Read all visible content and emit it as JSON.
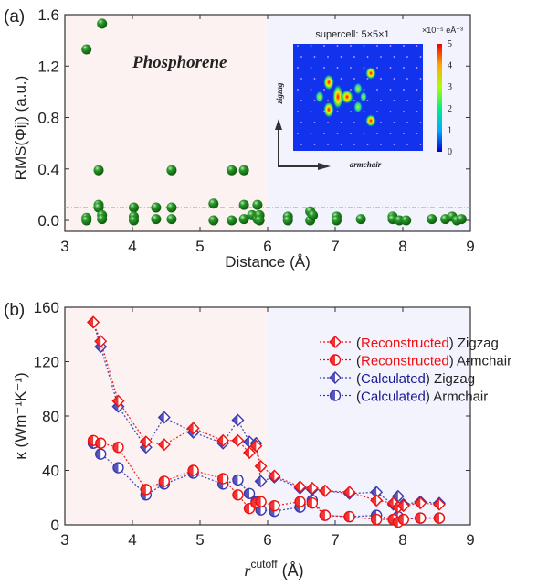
{
  "colors": {
    "pink_bg": "#fdf2f2",
    "blue_bg": "#f2f3fd",
    "scatter": "#1a7a1a",
    "threshold": "#33dddd",
    "red": "#ee1111",
    "blue": "#3333aa"
  },
  "chart_data": [
    {
      "type": "scatter",
      "panel_label": "(a)",
      "title": "",
      "annotation": "Phosphorene",
      "xlabel": "Distance (Å)",
      "ylabel": "RMS(Φij) (a.u.)",
      "xlim": [
        3,
        9
      ],
      "ylim": [
        -0.1,
        1.6
      ],
      "xticks": [
        3,
        4,
        5,
        6,
        7,
        8,
        9
      ],
      "yticks": [
        "0.0",
        "0.4",
        "0.8",
        "1.2",
        "1.6"
      ],
      "threshold": 0.1,
      "shaded_regions": [
        [
          3,
          6
        ],
        [
          6,
          9
        ]
      ],
      "points": [
        [
          3.32,
          1.33
        ],
        [
          3.55,
          1.53
        ],
        [
          3.32,
          0.02
        ],
        [
          3.32,
          0.0
        ],
        [
          3.5,
          0.39
        ],
        [
          3.5,
          0.12
        ],
        [
          3.5,
          0.1
        ],
        [
          3.55,
          0.04
        ],
        [
          3.55,
          0.01
        ],
        [
          4.02,
          0.1
        ],
        [
          4.02,
          0.03
        ],
        [
          4.02,
          0.0
        ],
        [
          4.35,
          0.1
        ],
        [
          4.35,
          0.01
        ],
        [
          4.58,
          0.39
        ],
        [
          4.58,
          0.1
        ],
        [
          4.58,
          0.01
        ],
        [
          5.2,
          0.13
        ],
        [
          5.2,
          0.0
        ],
        [
          5.47,
          0.39
        ],
        [
          5.47,
          0.0
        ],
        [
          5.65,
          0.39
        ],
        [
          5.65,
          0.12
        ],
        [
          5.65,
          0.01
        ],
        [
          5.77,
          0.04
        ],
        [
          5.85,
          0.12
        ],
        [
          5.85,
          0.01
        ],
        [
          5.88,
          0.04
        ],
        [
          5.88,
          0.0
        ],
        [
          6.3,
          0.03
        ],
        [
          6.3,
          0.0
        ],
        [
          6.63,
          0.07
        ],
        [
          6.63,
          0.0
        ],
        [
          6.67,
          0.04
        ],
        [
          7.02,
          0.03
        ],
        [
          7.02,
          0.0
        ],
        [
          7.38,
          0.01
        ],
        [
          7.85,
          0.03
        ],
        [
          7.85,
          0.01
        ],
        [
          7.95,
          0.0
        ],
        [
          8.05,
          0.0
        ],
        [
          8.43,
          0.01
        ],
        [
          8.63,
          0.01
        ],
        [
          8.73,
          0.03
        ],
        [
          8.8,
          0.0
        ],
        [
          8.87,
          0.01
        ]
      ],
      "inset": {
        "title": "supercell: 5×5×1",
        "colorbar_unit": "×10⁻⁵ eÅ⁻³",
        "colorbar_ticks": [
          "0",
          "1",
          "2",
          "3",
          "4",
          "5"
        ],
        "axis_x": "armchair",
        "axis_y": "zigzag"
      }
    },
    {
      "type": "line",
      "panel_label": "(b)",
      "xlabel_main": "r",
      "xlabel_sup": "cutoff",
      "xlabel_unit": "(Å)",
      "ylabel": "κ (Wm⁻¹K⁻¹)",
      "xlim": [
        3,
        9
      ],
      "ylim": [
        0,
        160
      ],
      "xticks": [
        3,
        4,
        5,
        6,
        7,
        8,
        9
      ],
      "yticks": [
        0,
        40,
        80,
        120,
        160
      ],
      "x": [
        3.42,
        3.53,
        3.79,
        4.2,
        4.47,
        4.9,
        5.34,
        5.56,
        5.73,
        5.83,
        5.9,
        6.1,
        6.48,
        6.66,
        6.85,
        7.21,
        7.61,
        7.86,
        7.93,
        8.01,
        8.26,
        8.54
      ],
      "legend_position": "top-right",
      "series": [
        {
          "name": "Reconstructed Zigzag",
          "prefix": "Reconstructed",
          "suffix": "Zigzag",
          "marker": "diamond",
          "color": "#ee1111",
          "values": [
            149,
            135,
            91,
            61,
            59,
            71,
            62,
            62,
            53,
            58,
            43,
            36,
            28,
            27,
            25,
            24,
            18,
            16,
            13,
            14,
            16,
            15
          ]
        },
        {
          "name": "Reconstructed Armchair",
          "prefix": "Reconstructed",
          "suffix": "Armchair",
          "marker": "circle",
          "color": "#ee1111",
          "values": [
            62,
            60,
            57,
            26,
            32,
            40,
            34,
            22,
            12,
            16,
            17,
            14,
            17,
            16,
            7,
            6,
            4,
            4,
            2,
            4,
            5,
            5
          ]
        },
        {
          "name": "Calculated Zigzag",
          "prefix": "Calculated",
          "suffix": "Zigzag",
          "marker": "diamond",
          "color": "#3a3ab0",
          "values": [
            149,
            131,
            87,
            57,
            79,
            68,
            60,
            77,
            61,
            60,
            32,
            35,
            27,
            26,
            25,
            23,
            24,
            15,
            21,
            15,
            17,
            16
          ]
        },
        {
          "name": "Calculated Armchair",
          "prefix": "Calculated",
          "suffix": "Armchair",
          "marker": "circle",
          "color": "#3a3ab0",
          "values": [
            60,
            52,
            42,
            22,
            30,
            38,
            30,
            33,
            23,
            17,
            11,
            10,
            13,
            18,
            7,
            6,
            7,
            4,
            6,
            4,
            5,
            5
          ]
        }
      ]
    }
  ]
}
